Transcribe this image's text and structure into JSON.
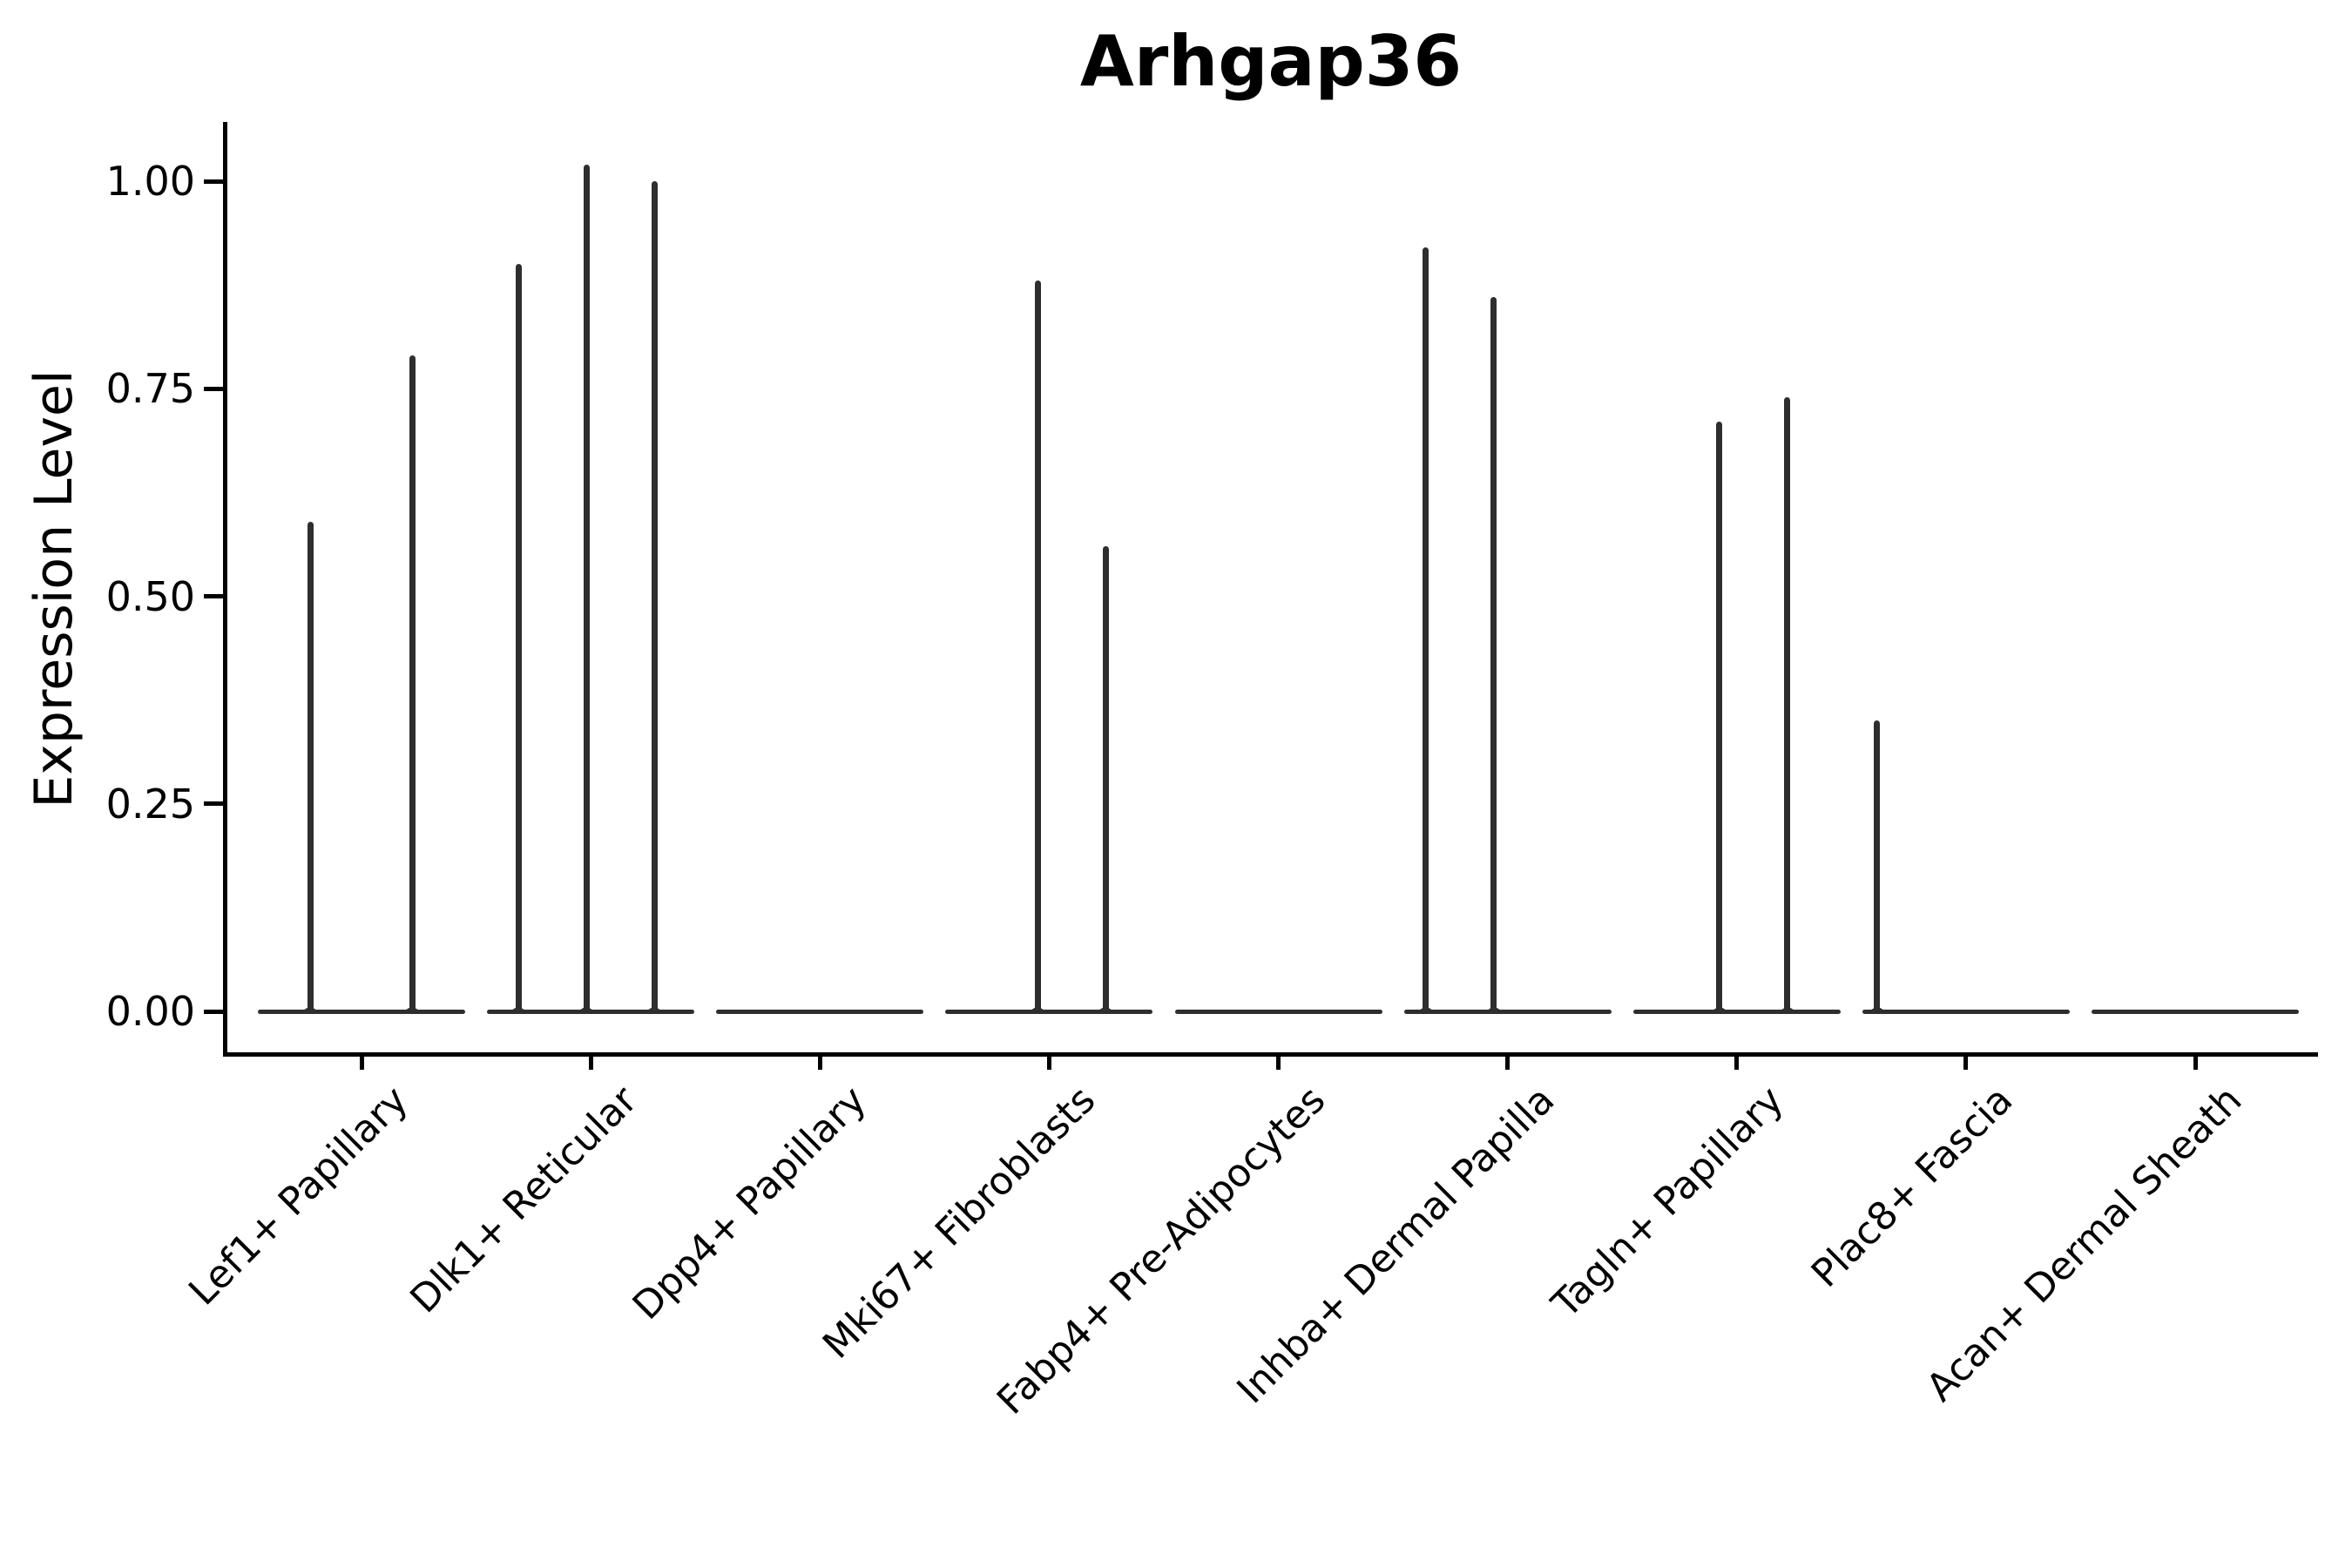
{
  "title": "Arhgap36",
  "y_axis": {
    "label": "Expression Level",
    "tick_labels": [
      "1.00",
      "0.75",
      "0.50",
      "0.25",
      "0.00"
    ]
  },
  "x_axis": {
    "tick_labels": [
      "Lef1+ Papillary",
      "Dlk1+ Reticular",
      "Dpp4+ Papillary",
      "Mki67+ Fibroblasts",
      "Fabp4+ Pre-Adipocytes",
      "Inhba+ Dermal Papilla",
      "Tagln+ Papillary",
      "Plac8+ Fascia",
      "Acan+ Dermal Sheath"
    ]
  },
  "chart_data": {
    "type": "violin",
    "title": "Arhgap36",
    "xlabel": "",
    "ylabel": "Expression Level",
    "ylim": [
      0,
      1.07
    ],
    "yticks": [
      1.0,
      0.75,
      0.5,
      0.25,
      0.0
    ],
    "grid": false,
    "legend_position": "none",
    "line_color": "#2e2e2e",
    "axis_color": "#000000",
    "background_color": "#ffffff",
    "categories": [
      "Lef1+ Papillary",
      "Dlk1+ Reticular",
      "Dpp4+ Papillary",
      "Mki67+ Fibroblasts",
      "Fabp4+ Pre-Adipocytes",
      "Inhba+ Dermal Papilla",
      "Tagln+ Papillary",
      "Plac8+ Fascia",
      "Acan+ Dermal Sheath"
    ],
    "violins": [
      {
        "category": "Lef1+ Papillary",
        "baseline_value": 0,
        "spikes": [
          {
            "dx": -59,
            "value": 0.59
          },
          {
            "dx": 58,
            "value": 0.79
          }
        ]
      },
      {
        "category": "Dlk1+ Reticular",
        "baseline_value": 0,
        "spikes": [
          {
            "dx": -83,
            "value": 0.9
          },
          {
            "dx": -5,
            "value": 1.02
          },
          {
            "dx": 73,
            "value": 1.0
          }
        ]
      },
      {
        "category": "Dpp4+ Papillary",
        "baseline_value": 0,
        "spikes": []
      },
      {
        "category": "Mki67+ Fibroblasts",
        "baseline_value": 0,
        "spikes": [
          {
            "dx": -13,
            "value": 0.88
          },
          {
            "dx": 65,
            "value": 0.56
          }
        ]
      },
      {
        "category": "Fabp4+ Pre-Adipocytes",
        "baseline_value": 0,
        "spikes": []
      },
      {
        "category": "Inhba+ Dermal Papilla",
        "baseline_value": 0,
        "spikes": [
          {
            "dx": -94,
            "value": 0.92
          },
          {
            "dx": -16,
            "value": 0.86
          }
        ]
      },
      {
        "category": "Tagln+ Papillary",
        "baseline_value": 0,
        "spikes": [
          {
            "dx": -20,
            "value": 0.71
          },
          {
            "dx": 58,
            "value": 0.74
          }
        ]
      },
      {
        "category": "Plac8+ Fascia",
        "baseline_value": 0,
        "spikes": [
          {
            "dx": -102,
            "value": 0.35
          }
        ]
      },
      {
        "category": "Acan+ Dermal Sheath",
        "baseline_value": 0,
        "spikes": []
      }
    ]
  }
}
